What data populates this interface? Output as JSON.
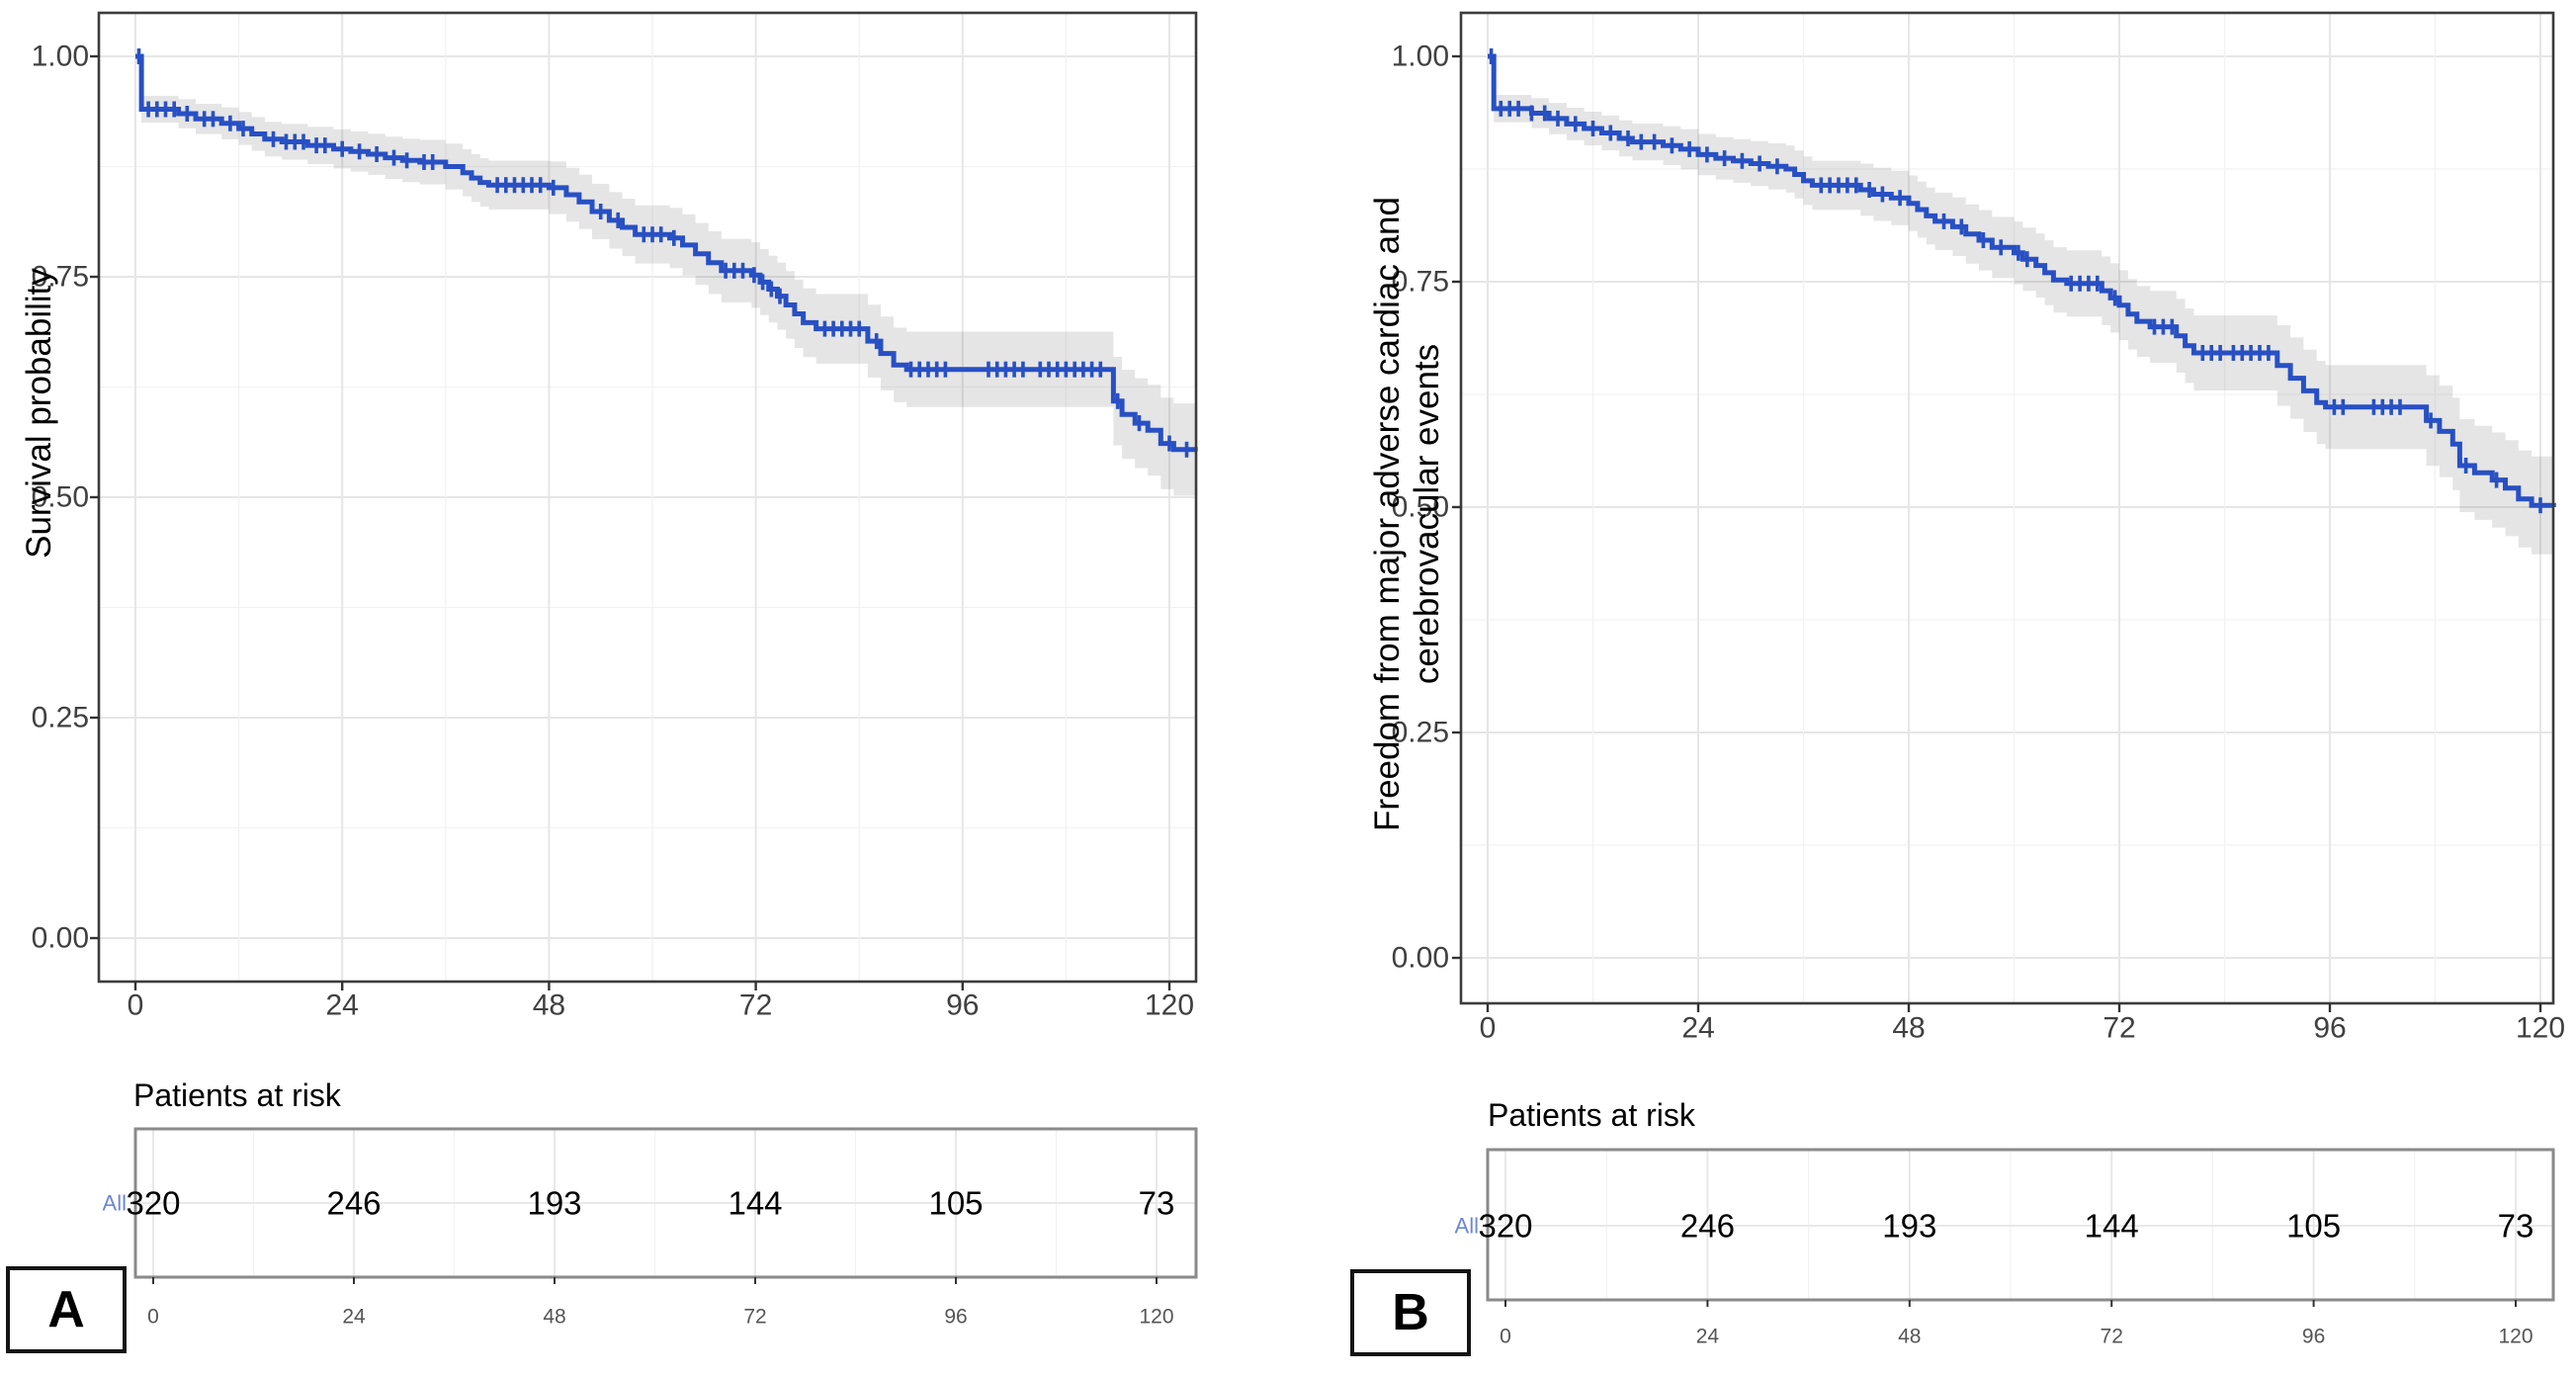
{
  "colors": {
    "curve": "#2850c4",
    "ci_band": "rgba(110,110,110,0.18)",
    "grid_major": "#e6e6e6",
    "grid_minor": "#f2f2f2",
    "panel_border": "#3c3c3c",
    "table_border": "#8a8a8a",
    "tick_label": "#404040",
    "axis_tick": "#333333",
    "risk_group_label": "#6f87d2",
    "risk_count": "#000000",
    "risk_axis_label": "#555555",
    "background": "#ffffff"
  },
  "panels": [
    {
      "letter": "A",
      "y_axis_title_lines": [
        "Survival probability"
      ],
      "risk_table_title": "Patients at risk"
    },
    {
      "letter": "B",
      "y_axis_title_lines": [
        "Freedom from major adverse cardiac and",
        "cerebrovacular events"
      ],
      "risk_table_title": "Patients at risk"
    }
  ],
  "chart_data": [
    {
      "type": "line",
      "subtype": "kaplan_meier_step",
      "panel": "A",
      "title": "",
      "xlabel": "",
      "ylabel": "Survival probability",
      "x_ticks": [
        0,
        24,
        48,
        72,
        96,
        120
      ],
      "y_ticks": [
        0.0,
        0.25,
        0.5,
        0.75,
        1.0
      ],
      "xlim": [
        0,
        123
      ],
      "ylim": [
        0,
        1
      ],
      "grid": "major+minor",
      "legend": "none",
      "ci_band_shown": true,
      "series": [
        {
          "name": "All",
          "color": "#2850c4",
          "ci_halfwidth_base": 0.015,
          "ci_halfwidth_slope": 0.00031,
          "steps": [
            [
              0,
              1.0
            ],
            [
              0.7,
              0.94
            ],
            [
              5,
              0.935
            ],
            [
              7,
              0.929
            ],
            [
              10,
              0.924
            ],
            [
              12,
              0.918
            ],
            [
              13.5,
              0.912
            ],
            [
              15,
              0.906
            ],
            [
              17,
              0.903
            ],
            [
              20,
              0.899
            ],
            [
              23,
              0.895
            ],
            [
              25,
              0.892
            ],
            [
              27,
              0.889
            ],
            [
              29,
              0.885
            ],
            [
              31,
              0.882
            ],
            [
              33,
              0.88
            ],
            [
              36,
              0.875
            ],
            [
              38,
              0.868
            ],
            [
              39,
              0.862
            ],
            [
              40,
              0.857
            ],
            [
              41,
              0.854
            ],
            [
              48,
              0.851
            ],
            [
              50,
              0.843
            ],
            [
              51.5,
              0.835
            ],
            [
              53,
              0.824
            ],
            [
              55,
              0.814
            ],
            [
              56.5,
              0.806
            ],
            [
              58,
              0.798
            ],
            [
              62,
              0.794
            ],
            [
              63.5,
              0.786
            ],
            [
              65,
              0.776
            ],
            [
              66.5,
              0.766
            ],
            [
              68,
              0.757
            ],
            [
              71.5,
              0.752
            ],
            [
              72.5,
              0.744
            ],
            [
              73.5,
              0.736
            ],
            [
              74.5,
              0.728
            ],
            [
              75.5,
              0.718
            ],
            [
              76.5,
              0.708
            ],
            [
              77.5,
              0.698
            ],
            [
              79,
              0.691
            ],
            [
              85,
              0.677
            ],
            [
              86.5,
              0.663
            ],
            [
              88,
              0.65
            ],
            [
              89.5,
              0.645
            ],
            [
              113.5,
              0.609
            ],
            [
              114.5,
              0.594
            ],
            [
              116,
              0.584
            ],
            [
              117.5,
              0.576
            ],
            [
              119,
              0.561
            ],
            [
              120.5,
              0.554
            ],
            [
              123,
              0.552
            ]
          ],
          "censor_times": [
            0.4,
            1.5,
            2.5,
            3.5,
            4.5,
            6,
            8,
            9,
            11,
            12.5,
            16,
            17.5,
            18.5,
            19.5,
            21,
            22,
            24,
            26,
            28,
            30,
            31.5,
            33.5,
            34.5,
            42,
            43,
            44,
            45,
            46,
            47,
            48.5,
            54,
            56,
            59,
            60,
            61,
            62.5,
            68.5,
            69.5,
            70.5,
            71.8,
            72.8,
            73.8,
            74.8,
            80,
            81,
            82,
            83,
            84,
            86,
            90,
            91,
            92,
            93,
            94,
            99,
            100,
            101,
            102,
            103,
            105,
            106,
            107,
            108,
            109,
            110,
            111,
            112,
            114,
            116.5,
            120,
            122
          ]
        }
      ],
      "risk_table": {
        "title": "Patients at risk",
        "times": [
          0,
          24,
          48,
          72,
          96,
          120
        ],
        "rows": [
          {
            "name": "All",
            "counts": [
              320,
              246,
              193,
              144,
              105,
              73
            ]
          }
        ]
      }
    },
    {
      "type": "line",
      "subtype": "kaplan_meier_step",
      "panel": "B",
      "title": "",
      "xlabel": "",
      "ylabel": "Freedom from major adverse cardiac and cerebrovacular events",
      "x_ticks": [
        0,
        24,
        48,
        72,
        96,
        120
      ],
      "y_ticks": [
        0.0,
        0.25,
        0.5,
        0.75,
        1.0
      ],
      "xlim": [
        0,
        121.5
      ],
      "ylim": [
        0,
        1
      ],
      "grid": "major+minor",
      "legend": "none",
      "ci_band_shown": true,
      "series": [
        {
          "name": "All",
          "color": "#2850c4",
          "ci_halfwidth_base": 0.015,
          "ci_halfwidth_slope": 0.00033,
          "steps": [
            [
              0,
              1.0
            ],
            [
              0.7,
              0.942
            ],
            [
              5,
              0.937
            ],
            [
              7,
              0.931
            ],
            [
              9,
              0.925
            ],
            [
              11,
              0.92
            ],
            [
              13,
              0.915
            ],
            [
              15,
              0.909
            ],
            [
              16.5,
              0.905
            ],
            [
              20,
              0.901
            ],
            [
              22,
              0.897
            ],
            [
              24,
              0.891
            ],
            [
              26,
              0.887
            ],
            [
              28,
              0.884
            ],
            [
              30,
              0.881
            ],
            [
              32,
              0.878
            ],
            [
              34,
              0.875
            ],
            [
              35,
              0.869
            ],
            [
              36,
              0.862
            ],
            [
              37,
              0.857
            ],
            [
              42.5,
              0.852
            ],
            [
              44,
              0.847
            ],
            [
              46,
              0.843
            ],
            [
              48,
              0.837
            ],
            [
              49,
              0.83
            ],
            [
              50,
              0.823
            ],
            [
              51,
              0.817
            ],
            [
              53,
              0.811
            ],
            [
              54.5,
              0.803
            ],
            [
              56,
              0.796
            ],
            [
              57.5,
              0.788
            ],
            [
              60,
              0.782
            ],
            [
              61,
              0.775
            ],
            [
              62.5,
              0.768
            ],
            [
              63.5,
              0.76
            ],
            [
              64.5,
              0.752
            ],
            [
              66,
              0.748
            ],
            [
              70,
              0.74
            ],
            [
              71,
              0.732
            ],
            [
              72,
              0.724
            ],
            [
              73,
              0.714
            ],
            [
              74,
              0.706
            ],
            [
              75.5,
              0.7
            ],
            [
              78.5,
              0.69
            ],
            [
              79.5,
              0.679
            ],
            [
              80.5,
              0.671
            ],
            [
              90,
              0.657
            ],
            [
              91.5,
              0.643
            ],
            [
              93,
              0.629
            ],
            [
              94.5,
              0.616
            ],
            [
              95.5,
              0.611
            ],
            [
              107,
              0.596
            ],
            [
              108.5,
              0.584
            ],
            [
              110,
              0.57
            ],
            [
              110.8,
              0.546
            ],
            [
              112.5,
              0.538
            ],
            [
              114.5,
              0.53
            ],
            [
              116,
              0.521
            ],
            [
              117.5,
              0.509
            ],
            [
              119,
              0.502
            ],
            [
              121.5,
              0.5
            ]
          ],
          "censor_times": [
            0.4,
            1.5,
            2.5,
            3.5,
            5,
            6.5,
            8,
            10,
            12,
            14,
            16,
            17.5,
            19,
            21,
            23,
            25,
            27,
            29,
            31,
            33,
            38,
            39,
            40,
            41,
            42,
            43.5,
            45,
            47,
            52,
            54,
            56.5,
            58.5,
            60.5,
            61.5,
            66.5,
            67.5,
            68.5,
            69.5,
            71.5,
            76,
            77,
            78,
            81.5,
            82.5,
            83.5,
            85,
            86,
            87,
            88,
            89,
            96.5,
            97.5,
            101,
            102,
            103,
            104,
            107.5,
            111.5,
            115,
            120
          ]
        }
      ],
      "risk_table": {
        "title": "Patients at risk",
        "times": [
          0,
          24,
          48,
          72,
          96,
          120
        ],
        "rows": [
          {
            "name": "All",
            "counts": [
              320,
              246,
              193,
              144,
              105,
              73
            ]
          }
        ]
      }
    }
  ]
}
